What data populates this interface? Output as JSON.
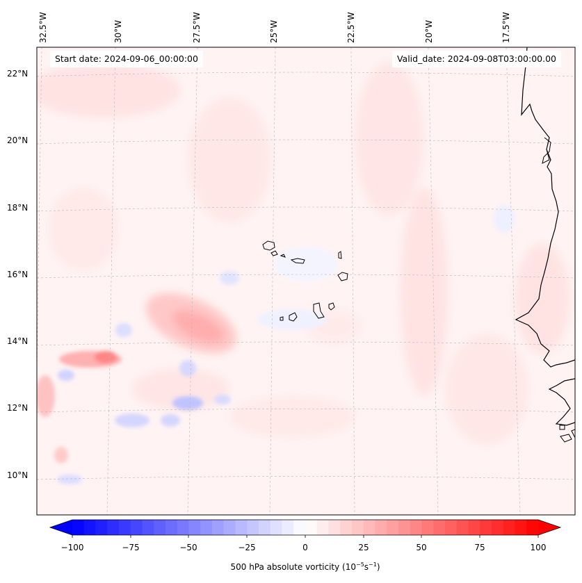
{
  "map": {
    "start_date_text": "Start date: 2024-09-06_00:00:00",
    "valid_date_text": "Valid_date: 2024-09-08T03:00:00.00",
    "longitude_labels": [
      "32.5°W",
      "30°W",
      "27.5°W",
      "25°W",
      "22.5°W",
      "20°W",
      "17.5°W"
    ],
    "latitude_labels": [
      "22°N",
      "20°N",
      "18°N",
      "16°N",
      "14°N",
      "12°N",
      "10°N"
    ],
    "colorbar": {
      "label_prefix": "500 hPa absolute vorticity (10",
      "label_exp1": "−5",
      "label_mid": "s",
      "label_exp2": "−1",
      "label_suffix": ")",
      "ticks": [
        "−100",
        "−75",
        "−50",
        "−25",
        "0",
        "25",
        "50",
        "75",
        "100"
      ],
      "min": -100,
      "max": 100,
      "extend": "both"
    },
    "colors": {
      "negative_extreme": "#0000ff",
      "zero": "#ffffff",
      "positive_extreme": "#ff0000",
      "coastline": "#000000",
      "gridline": "#b0b0b0"
    }
  }
}
